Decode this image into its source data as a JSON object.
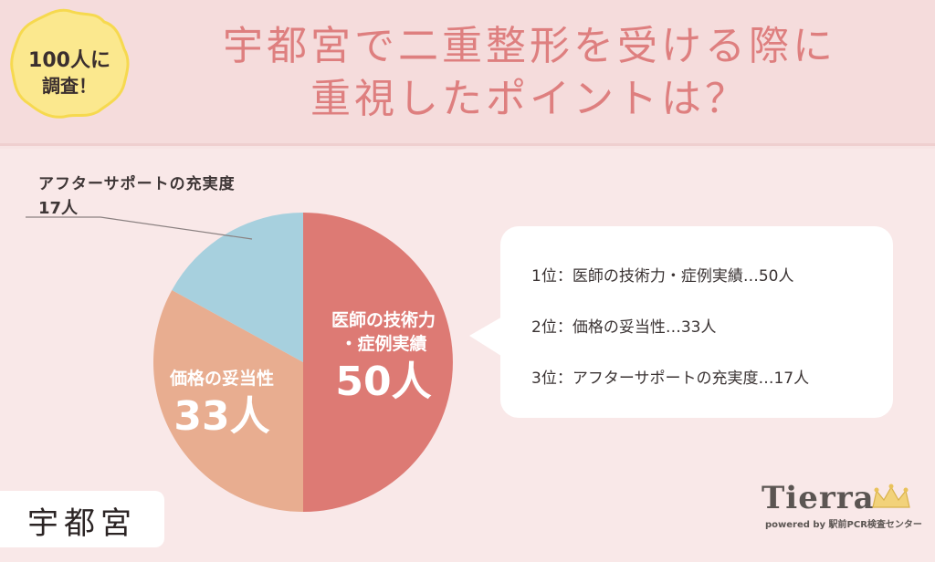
{
  "badge": {
    "line1": "100人に",
    "line2": "調査！"
  },
  "title": {
    "line1": "宇都宮で二重整形を受ける際に",
    "line2": "重視したポイントは？"
  },
  "chart_data": {
    "type": "pie",
    "title": "宇都宮で二重整形を受ける際に重視したポイントは？",
    "slices": [
      {
        "label": "医師の技術力・症例実績",
        "display_label": [
          "医師の技術力",
          "・症例実績"
        ],
        "value": 50,
        "value_label": "50人",
        "color": "#dd7a74"
      },
      {
        "label": "価格の妥当性",
        "display_label": [
          "価格の妥当性"
        ],
        "value": 33,
        "value_label": "33人",
        "color": "#e8ad90"
      },
      {
        "label": "アフターサポートの充実度",
        "display_label": [
          "アフターサポートの充実度"
        ],
        "value": 17,
        "value_label": "17人",
        "color": "#a7d0de"
      }
    ],
    "total": 100,
    "start_angle_deg": 0,
    "direction": "clockwise"
  },
  "callout": {
    "label": "アフターサポートの充実度",
    "value": "17人"
  },
  "ranking": [
    "1位：医師の技術力・症例実績…50人",
    "2位：価格の妥当性…33人",
    "3位：アフターサポートの充実度…17人"
  ],
  "city": "宇都宮",
  "logo": {
    "name": "Tierra",
    "sub": "powered by 駅前PCR検査センター"
  }
}
